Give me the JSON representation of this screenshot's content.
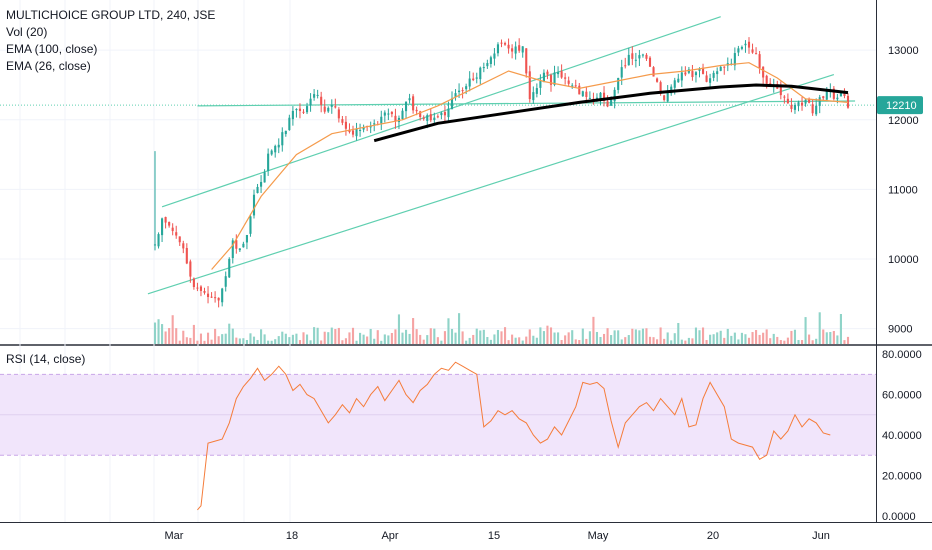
{
  "header": {
    "symbol_line": "MULTICHOICE GROUP LTD, 240, JSE",
    "vol_label": "Vol (20)",
    "ema100_label": "EMA (100, close)",
    "ema26_label": "EMA (26, close)"
  },
  "rsi_panel": {
    "label": "RSI (14, close)"
  },
  "colors": {
    "up": "#26a69a",
    "down": "#ef5350",
    "vol_up": "#8fd3c8",
    "vol_down": "#f5a3a3",
    "ema26": "#f59b4c",
    "ema100": "#000000",
    "channel": "#5fcfb0",
    "rsi_line": "#f57c3a",
    "rsi_band": "#f1e5fb",
    "rsi_band_border": "#c9a6e8",
    "price_tag": "#26a69a",
    "grid": "#f0f3fa"
  },
  "chart_data": [
    {
      "type": "candlestick",
      "name": "price",
      "price_axis_ticks": [
        "13000",
        "12000",
        "11000",
        "10000",
        "9000"
      ],
      "price_axis_values": [
        13000,
        12000,
        11000,
        10000,
        9000
      ],
      "ylim": [
        8780,
        13720
      ],
      "time_axis_labels": [
        "Mar",
        "18",
        "Apr",
        "15",
        "May",
        "20",
        "Jun"
      ],
      "current_price_label": "12210",
      "current_price": 12210,
      "close_path": [
        [
          0,
          10200
        ],
        [
          2,
          10600
        ],
        [
          4,
          10500
        ],
        [
          6,
          10300
        ],
        [
          8,
          10100
        ],
        [
          10,
          9700
        ],
        [
          12,
          9600
        ],
        [
          14,
          9500
        ],
        [
          16,
          9400
        ],
        [
          18,
          9450
        ],
        [
          20,
          9700
        ],
        [
          22,
          10300
        ],
        [
          24,
          10100
        ],
        [
          26,
          10400
        ],
        [
          28,
          10900
        ],
        [
          30,
          11100
        ],
        [
          32,
          11500
        ],
        [
          34,
          11600
        ],
        [
          36,
          11800
        ],
        [
          38,
          12000
        ],
        [
          40,
          12200
        ],
        [
          42,
          12100
        ],
        [
          44,
          12350
        ],
        [
          46,
          12300
        ],
        [
          48,
          12100
        ],
        [
          50,
          12200
        ],
        [
          52,
          12050
        ],
        [
          54,
          11900
        ],
        [
          56,
          11800
        ],
        [
          58,
          11900
        ],
        [
          60,
          11850
        ],
        [
          62,
          11900
        ],
        [
          64,
          12000
        ],
        [
          66,
          12100
        ],
        [
          68,
          12000
        ],
        [
          70,
          12150
        ],
        [
          72,
          12250
        ],
        [
          74,
          12100
        ],
        [
          76,
          12050
        ],
        [
          78,
          12000
        ],
        [
          80,
          12000
        ],
        [
          82,
          12100
        ],
        [
          84,
          12300
        ],
        [
          86,
          12400
        ],
        [
          88,
          12500
        ],
        [
          90,
          12600
        ],
        [
          92,
          12700
        ],
        [
          94,
          12800
        ],
        [
          96,
          13000
        ],
        [
          98,
          13100
        ],
        [
          100,
          13000
        ],
        [
          102,
          13050
        ],
        [
          104,
          13000
        ],
        [
          106,
          12300
        ],
        [
          108,
          12500
        ],
        [
          110,
          12650
        ],
        [
          112,
          12550
        ],
        [
          114,
          12700
        ],
        [
          116,
          12600
        ],
        [
          118,
          12500
        ],
        [
          120,
          12400
        ],
        [
          122,
          12300
        ],
        [
          124,
          12250
        ],
        [
          126,
          12350
        ],
        [
          128,
          12250
        ],
        [
          130,
          12400
        ],
        [
          132,
          12700
        ],
        [
          134,
          12900
        ],
        [
          136,
          12850
        ],
        [
          138,
          12900
        ],
        [
          140,
          12800
        ],
        [
          142,
          12500
        ],
        [
          144,
          12300
        ],
        [
          146,
          12500
        ],
        [
          148,
          12600
        ],
        [
          150,
          12700
        ],
        [
          152,
          12650
        ],
        [
          154,
          12750
        ],
        [
          156,
          12600
        ],
        [
          158,
          12700
        ],
        [
          160,
          12750
        ],
        [
          162,
          12800
        ],
        [
          164,
          12900
        ],
        [
          166,
          13100
        ],
        [
          168,
          13000
        ],
        [
          170,
          12950
        ],
        [
          172,
          12600
        ],
        [
          174,
          12500
        ],
        [
          176,
          12450
        ],
        [
          178,
          12300
        ],
        [
          180,
          12150
        ],
        [
          182,
          12200
        ],
        [
          184,
          12250
        ],
        [
          186,
          12150
        ],
        [
          188,
          12300
        ],
        [
          190,
          12400
        ],
        [
          192,
          12350
        ],
        [
          194,
          12400
        ],
        [
          196,
          12200
        ]
      ],
      "bar_count": 197
    },
    {
      "type": "line",
      "name": "EMA (100, close)",
      "points": [
        [
          62,
          11700
        ],
        [
          80,
          11950
        ],
        [
          100,
          12100
        ],
        [
          120,
          12250
        ],
        [
          140,
          12380
        ],
        [
          160,
          12470
        ],
        [
          170,
          12500
        ],
        [
          180,
          12480
        ],
        [
          196,
          12390
        ]
      ]
    },
    {
      "type": "line",
      "name": "EMA (26, close)",
      "points": [
        [
          16,
          9850
        ],
        [
          22,
          10200
        ],
        [
          30,
          10900
        ],
        [
          40,
          11500
        ],
        [
          50,
          11800
        ],
        [
          60,
          11900
        ],
        [
          70,
          12000
        ],
        [
          80,
          12200
        ],
        [
          90,
          12450
        ],
        [
          100,
          12700
        ],
        [
          110,
          12550
        ],
        [
          120,
          12450
        ],
        [
          130,
          12550
        ],
        [
          140,
          12650
        ],
        [
          150,
          12700
        ],
        [
          160,
          12780
        ],
        [
          168,
          12820
        ],
        [
          176,
          12600
        ],
        [
          184,
          12300
        ],
        [
          196,
          12250
        ]
      ]
    },
    {
      "type": "line",
      "name": "RSI (14, close)",
      "ylim": [
        -3,
        84
      ],
      "axis_ticks": [
        "80.0000",
        "60.0000",
        "40.0000",
        "20.0000",
        "0.0000"
      ],
      "axis_values": [
        80,
        60,
        40,
        20,
        0
      ],
      "band": [
        30,
        70
      ],
      "midline": 50,
      "points": [
        [
          12,
          3
        ],
        [
          13,
          5
        ],
        [
          15,
          36
        ],
        [
          17,
          37
        ],
        [
          19,
          38
        ],
        [
          21,
          46
        ],
        [
          23,
          58
        ],
        [
          25,
          64
        ],
        [
          27,
          68
        ],
        [
          29,
          73
        ],
        [
          31,
          67
        ],
        [
          33,
          70
        ],
        [
          35,
          74
        ],
        [
          37,
          70
        ],
        [
          39,
          62
        ],
        [
          41,
          65
        ],
        [
          43,
          60
        ],
        [
          45,
          58
        ],
        [
          47,
          52
        ],
        [
          49,
          46
        ],
        [
          51,
          50
        ],
        [
          53,
          55
        ],
        [
          55,
          51
        ],
        [
          57,
          58
        ],
        [
          59,
          54
        ],
        [
          61,
          60
        ],
        [
          63,
          64
        ],
        [
          65,
          57
        ],
        [
          67,
          62
        ],
        [
          69,
          67
        ],
        [
          71,
          60
        ],
        [
          73,
          56
        ],
        [
          75,
          62
        ],
        [
          77,
          65
        ],
        [
          79,
          70
        ],
        [
          81,
          73
        ],
        [
          83,
          72
        ],
        [
          85,
          76
        ],
        [
          87,
          74
        ],
        [
          89,
          72
        ],
        [
          91,
          70
        ],
        [
          93,
          44
        ],
        [
          95,
          47
        ],
        [
          97,
          52
        ],
        [
          99,
          50
        ],
        [
          101,
          52
        ],
        [
          103,
          48
        ],
        [
          105,
          46
        ],
        [
          107,
          40
        ],
        [
          109,
          36
        ],
        [
          111,
          38
        ],
        [
          113,
          44
        ],
        [
          115,
          40
        ],
        [
          117,
          47
        ],
        [
          119,
          54
        ],
        [
          121,
          66
        ],
        [
          123,
          65
        ],
        [
          125,
          66
        ],
        [
          127,
          63
        ],
        [
          129,
          47
        ],
        [
          131,
          34
        ],
        [
          133,
          46
        ],
        [
          135,
          50
        ],
        [
          137,
          54
        ],
        [
          139,
          56
        ],
        [
          141,
          52
        ],
        [
          143,
          58
        ],
        [
          145,
          54
        ],
        [
          147,
          50
        ],
        [
          149,
          58
        ],
        [
          151,
          44
        ],
        [
          153,
          45
        ],
        [
          155,
          58
        ],
        [
          157,
          66
        ],
        [
          159,
          60
        ],
        [
          161,
          54
        ],
        [
          163,
          38
        ],
        [
          165,
          36
        ],
        [
          167,
          35
        ],
        [
          169,
          34
        ],
        [
          171,
          28
        ],
        [
          173,
          30
        ],
        [
          175,
          42
        ],
        [
          177,
          38
        ],
        [
          179,
          42
        ],
        [
          181,
          50
        ],
        [
          183,
          44
        ],
        [
          185,
          48
        ],
        [
          187,
          46
        ],
        [
          189,
          41
        ],
        [
          191,
          40
        ]
      ]
    }
  ]
}
